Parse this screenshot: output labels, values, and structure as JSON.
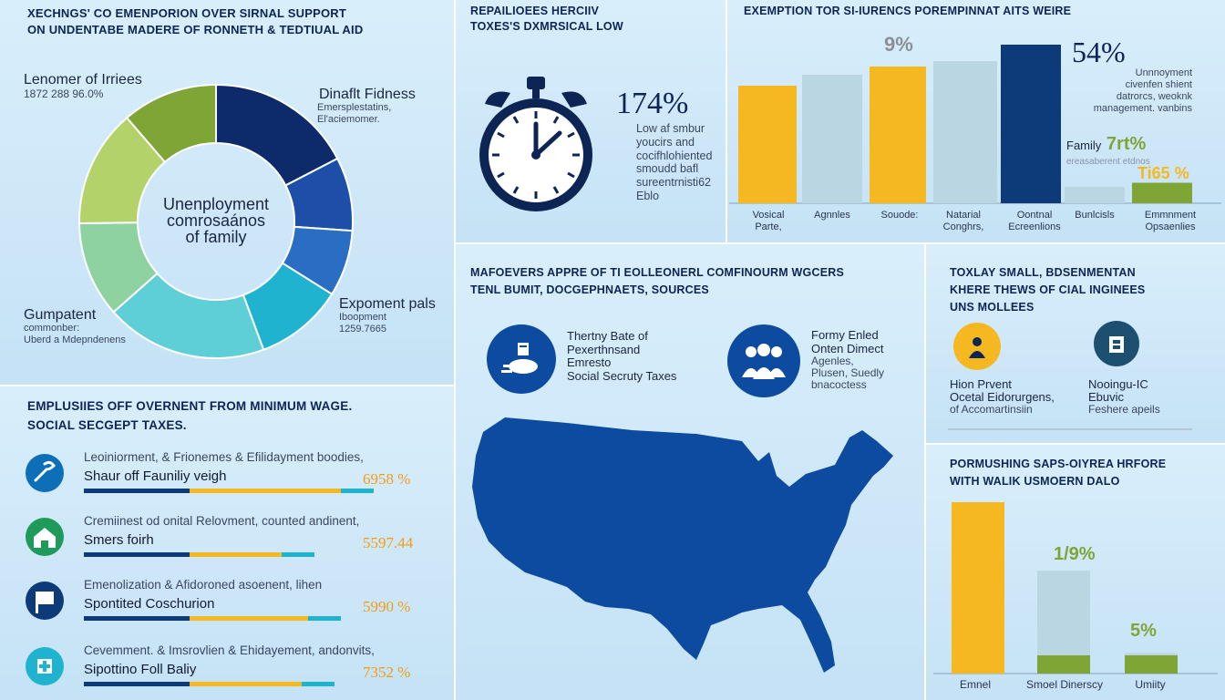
{
  "header": {
    "title_line1": "XECHNGS' CO EMENPORION OVER SIRNAL SUPPORT",
    "title_line2": "ON UNDENTABE MADERE OF RONNETH & TEDTIUAL AID"
  },
  "donut": {
    "label_top_left": "Lenomer of Irriees",
    "sub_top_left": "1872 288 96.0%",
    "label_top_right": "Dinaflt Fidness",
    "sub_top_right": "Emersplestatins,\nEl'aciemomer.",
    "label_bottom_left": "Gumpatent",
    "sub_bottom_left": "commonber:\nUberd a Mdepndenens",
    "label_bottom_right": "Expoment pals",
    "sub_bottom_right": "Iboopment\n1259.7665",
    "center_text": "Unenployment\ncomrosaános\nof family"
  },
  "timer_panel": {
    "heading": "REPAILIOEES HERCIIV\nTOXES'S DXMRSICAL LOW",
    "percent": "174%",
    "desc": "Low af smbur\nyoucirs and\ncocifhlohiented\nsmoudd bafl\nsureentrnisti62\nEblo"
  },
  "bar_top": {
    "heading": "EXEMPTION TOR SI-IURENCS POREMPINNAT AITS WEIRE",
    "pct_main": "54%",
    "pct_main_desc": "Unnnoyment\ncivenfen shient\ndatrorcs, weoknk\nmanagement. vanbins",
    "family_label": "Family",
    "family_pct": "7rt%",
    "family_sub": "ereasaberent etdnos",
    "marker_top": "9%",
    "marker_right": "Ti65 %",
    "categories": [
      "Vosical\nParte,",
      "Agnnles",
      "Souode:",
      "Natarial\nConghrs,",
      "Oontnal\nEcreenlions",
      "Bunlcisls",
      "Emmnment\nOpsaenlies"
    ]
  },
  "chart_data": [
    {
      "type": "pie",
      "title": "",
      "labels": [
        "",
        "",
        "",
        "",
        "",
        "",
        "",
        ""
      ],
      "values": [
        20,
        10,
        9,
        12,
        22,
        13,
        16,
        13
      ],
      "colors": [
        "#0d2a6b",
        "#1e4fa8",
        "#2a6ec3",
        "#1fb3cf",
        "#5ecfd7",
        "#8ed2a0",
        "#b3d36a",
        "#7ea536"
      ]
    },
    {
      "type": "bar",
      "title": "EXEMPTION TOR SI-IURENCS POREMPINNAT AITS WEIRE",
      "categories": [
        "Vosical Parte,",
        "Agnnles",
        "Souode:",
        "Natarial Conghrs,",
        "Oontnal Ecreenlions",
        "Bunlcisls",
        "Emmnment Opsaenlies"
      ],
      "values": [
        43,
        47,
        50,
        52,
        58,
        6,
        7.5
      ],
      "colors": [
        "#f6b820",
        "#b9d6e2",
        "#f6b820",
        "#b9d6e2",
        "#0d3a78",
        "#b9d6e2",
        "#7ea536"
      ],
      "ylim": [
        0,
        60
      ]
    },
    {
      "type": "bar",
      "title": "PORMUSHING SAPS-OIYREA HRFORE WITH WALIK USMOERN DALO",
      "categories": [
        "Emnel",
        "Smoel Dinerscy",
        "Umiity"
      ],
      "values": [
        100,
        60,
        12
      ],
      "colors": [
        "#f6b820",
        "#b9d6e2",
        "#b9d6e2"
      ],
      "ylim": [
        0,
        100
      ]
    }
  ],
  "wage_panel": {
    "heading": "EMPLUSIIES OFF OVERNENT FROM MINIMUM WAGE.\nSOCIAL SECGEPT TAXES.",
    "rows": [
      {
        "title": "Leoiniorment, & Frionemes & Efilidayment boodies,",
        "label": "Shaur off Fauniliy veigh",
        "value": "6958 %",
        "icon": "wrench-icon",
        "pct": 0.78
      },
      {
        "title": "Cremiinest od onital Relovment, counted andinent,",
        "label": "Smers foirh",
        "value": "5597.44",
        "icon": "house-icon",
        "pct": 0.6
      },
      {
        "title": "Emenolization & Afidoroned asoenent, lihen",
        "label": "Spontited Coschurion",
        "value": "5990 %",
        "icon": "flag-icon",
        "pct": 0.68
      },
      {
        "title": "Cevemment. & Imsrovlien & Ehidayement, andonvits,",
        "label": "Sipottino Foll Baliy",
        "value": "7352 %",
        "icon": "medical-icon",
        "pct": 0.66
      }
    ],
    "colors": {
      "navy": "#0d3a78",
      "gold": "#f6b820",
      "cyan": "#1fb3cf"
    }
  },
  "map_panel": {
    "heading": "MAFOEVERS APPRE OF TI EOLLEONERL COMFINOURM WGCERS\nTENL BUMIT, DOCGEPHNAETS, SOURCES",
    "item1": "Thertny Bate of\nPexerthnsand\nEmresto\nSocial Secruty Taxes",
    "item2_title": "Formy Enled\nOnten Dimect",
    "item2_sub": "Agenles,\nPlusen, Suedly\nbnacoctess",
    "map_color": "#0d4ba0"
  },
  "small_biz": {
    "heading": "TOXLAY SMALL, BDSENMENTAN\nKHERE THEWS OF CIAL INGINEES\nUNS MOLLEES",
    "item1_title": "Hion Prvent",
    "item1_sub": "Ocetal Eidorurgens,",
    "item1_sub2": "of Accomartinsiin",
    "item2_title": "Nooingu-IC",
    "item2_sub": "Ebuvic",
    "item2_sub2": "Feshere apeils"
  },
  "bottom_chart": {
    "heading": "PORMUSHING SAPS-OIYREA HRFORE\nWITH WALIK USMOERN DALO",
    "pct1": "1/9%",
    "pct2": "5%",
    "categories": [
      "Emnel",
      "Smoel Dinerscy",
      "Umiity"
    ]
  }
}
